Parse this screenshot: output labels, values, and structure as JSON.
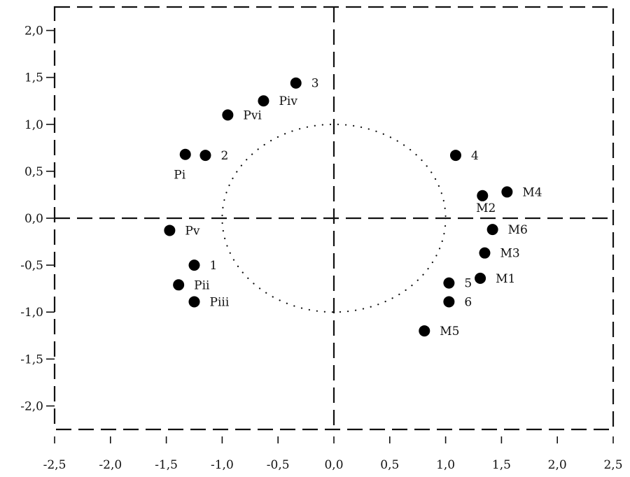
{
  "chart_data": {
    "type": "scatter",
    "title": "",
    "xlabel": "",
    "ylabel": "",
    "xlim": [
      -2.5,
      2.5
    ],
    "ylim": [
      -2.25,
      2.25
    ],
    "x_ticks": [
      -2.5,
      -2.0,
      -1.5,
      -1.0,
      -0.5,
      0.0,
      0.5,
      1.0,
      1.5,
      2.0,
      2.5
    ],
    "x_tick_labels": [
      "-2,5",
      "-2,0",
      "-1,5",
      "-1,0",
      "-0,5",
      "0,0",
      "0,5",
      "1,0",
      "1,5",
      "2,0",
      "2,5"
    ],
    "y_ticks": [
      2.0,
      1.5,
      1.0,
      0.5,
      0.0,
      -0.5,
      -1.0,
      -1.5,
      -2.0
    ],
    "y_tick_labels": [
      "2,0",
      "1,5",
      "1,0",
      "0,5",
      "0,0",
      "-0,5",
      "-1,0",
      "-1,5",
      "-2,0"
    ],
    "reference_lines": {
      "x_zero": true,
      "y_zero": true,
      "style": "dashed"
    },
    "unit_circle": {
      "radius": 1.0,
      "style": "dotted"
    },
    "grid": false,
    "legend": "none",
    "marker_color": "#000000",
    "points": [
      {
        "label": "3",
        "x": -0.34,
        "y": 1.44,
        "label_pos": "right"
      },
      {
        "label": "Piv",
        "x": -0.63,
        "y": 1.25,
        "label_pos": "right"
      },
      {
        "label": "Pvi",
        "x": -0.95,
        "y": 1.1,
        "label_pos": "right"
      },
      {
        "label": "Pi",
        "x": -1.33,
        "y": 0.68,
        "label_pos": "below"
      },
      {
        "label": "2",
        "x": -1.15,
        "y": 0.67,
        "label_pos": "right"
      },
      {
        "label": "4",
        "x": 1.09,
        "y": 0.67,
        "label_pos": "right"
      },
      {
        "label": "M2",
        "x": 1.33,
        "y": 0.24,
        "label_pos": "below"
      },
      {
        "label": "M4",
        "x": 1.55,
        "y": 0.28,
        "label_pos": "right"
      },
      {
        "label": "M6",
        "x": 1.42,
        "y": -0.12,
        "label_pos": "right"
      },
      {
        "label": "Pv",
        "x": -1.47,
        "y": -0.13,
        "label_pos": "right"
      },
      {
        "label": "M3",
        "x": 1.35,
        "y": -0.37,
        "label_pos": "right"
      },
      {
        "label": "1",
        "x": -1.25,
        "y": -0.5,
        "label_pos": "right"
      },
      {
        "label": "M1",
        "x": 1.31,
        "y": -0.64,
        "label_pos": "right"
      },
      {
        "label": "Pii",
        "x": -1.39,
        "y": -0.71,
        "label_pos": "right"
      },
      {
        "label": "5",
        "x": 1.03,
        "y": -0.69,
        "label_pos": "right"
      },
      {
        "label": "Piii",
        "x": -1.25,
        "y": -0.89,
        "label_pos": "right"
      },
      {
        "label": "6",
        "x": 1.03,
        "y": -0.89,
        "label_pos": "right"
      },
      {
        "label": "M5",
        "x": 0.81,
        "y": -1.2,
        "label_pos": "right"
      }
    ]
  }
}
